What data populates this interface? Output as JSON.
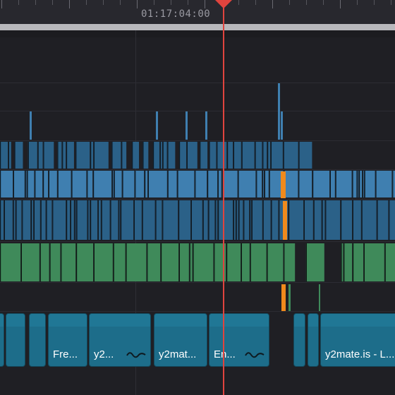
{
  "timeline": {
    "timecode": "01:17:04:00",
    "colors": {
      "video_clip": "#3f7fb0",
      "video_clip_dark": "#2b6188",
      "audio_clip": "#3f8a5a",
      "marker": "#f08a1c",
      "playhead": "#e0443e",
      "subtitle_clip": "#1d6d8a"
    }
  },
  "clips": [
    {
      "label": ""
    },
    {
      "label": ""
    },
    {
      "label": ""
    },
    {
      "label": "Fre..."
    },
    {
      "label": "y2..."
    },
    {
      "label": "y2mat..."
    },
    {
      "label": "En..."
    },
    {
      "label": ""
    },
    {
      "label": ""
    },
    {
      "label": "y2mate.is - L..."
    }
  ]
}
